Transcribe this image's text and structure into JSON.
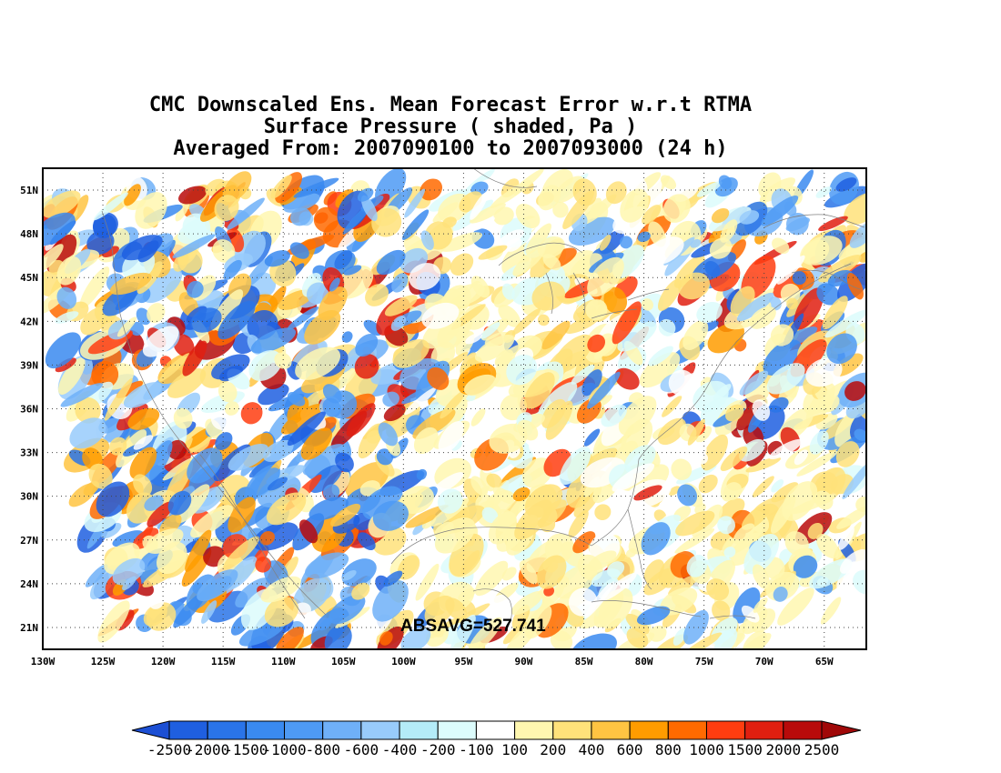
{
  "title": {
    "line1": "CMC Downscaled Ens. Mean Forecast Error w.r.t RTMA",
    "line2": "Surface Pressure ( shaded, Pa )",
    "line3": "Averaged From: 2007090100 to 2007093000 (24 h)"
  },
  "map": {
    "lat_labels": [
      "51N",
      "48N",
      "45N",
      "42N",
      "39N",
      "36N",
      "33N",
      "30N",
      "27N",
      "24N",
      "21N"
    ],
    "lon_labels": [
      "130W",
      "125W",
      "120W",
      "115W",
      "110W",
      "105W",
      "100W",
      "95W",
      "90W",
      "85W",
      "80W",
      "75W",
      "70W",
      "65W"
    ],
    "lat_range": [
      19.5,
      52.5
    ],
    "lon_range": [
      -130,
      -61.5
    ],
    "absavg": "ABSAVG=527.741",
    "grid": "dotted"
  },
  "colorbar": {
    "labels": [
      "-2500",
      "-2000",
      "-1500",
      "-1000",
      "-800",
      "-600",
      "-400",
      "-200",
      "-100",
      "100",
      "200",
      "400",
      "600",
      "800",
      "1000",
      "1500",
      "2000",
      "2500"
    ],
    "colors": [
      "#1f5fe0",
      "#2a74e8",
      "#3a8af0",
      "#4e9af4",
      "#6fb0f8",
      "#98cbfb",
      "#b4ecf8",
      "#dcfcfc",
      "#ffffff",
      "#fff7b0",
      "#ffe27a",
      "#ffc442",
      "#ff9c00",
      "#ff6a00",
      "#ff3d10",
      "#e01f10",
      "#b80a0a"
    ],
    "low_arrow_color": "#1c4fd4",
    "high_arrow_color": "#a00808"
  }
}
